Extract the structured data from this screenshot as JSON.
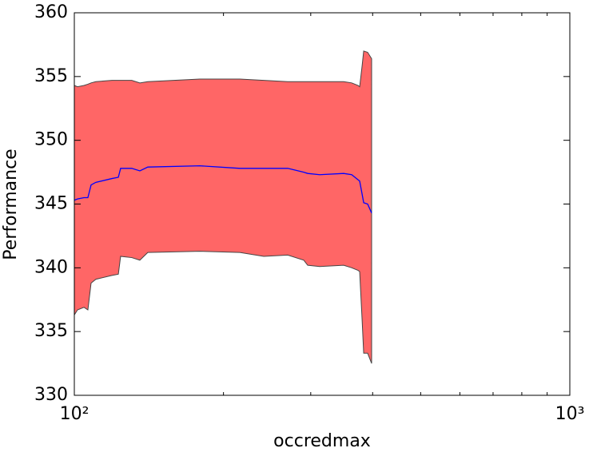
{
  "chart_data": {
    "type": "line",
    "xlabel": "occredmax",
    "ylabel": "Performance",
    "xscale": "log",
    "x": [
      100,
      101.5,
      104.6,
      106.5,
      108.1,
      110.5,
      119.1,
      122.7,
      124,
      130.6,
      135.6,
      140.7,
      179.1,
      215.8,
      241.2,
      269.6,
      290.4,
      295.8,
      312.7,
      349.6,
      362.9,
      373.8,
      376.6,
      380.8,
      383.7,
      390.8,
      398.1
    ],
    "series": [
      {
        "color": "#0000ff",
        "values": [
          345.3,
          345.4,
          345.5,
          345.5,
          346.5,
          346.7,
          347.0,
          347.1,
          347.8,
          347.8,
          347.6,
          347.9,
          348.0,
          347.8,
          347.8,
          347.8,
          347.5,
          347.4,
          347.3,
          347.4,
          347.3,
          346.9,
          346.8,
          345.8,
          345.1,
          345.0,
          344.3
        ]
      }
    ],
    "band": {
      "color": "#ff6666",
      "upper": [
        354.3,
        354.2,
        354.3,
        354.4,
        354.5,
        354.6,
        354.7,
        354.7,
        354.7,
        354.7,
        354.5,
        354.6,
        354.8,
        354.8,
        354.7,
        354.6,
        354.6,
        354.6,
        354.6,
        354.6,
        354.5,
        354.3,
        354.2,
        355.8,
        357.0,
        356.9,
        356.4
      ],
      "lower": [
        336.3,
        336.7,
        336.9,
        336.7,
        338.8,
        339.1,
        339.4,
        339.5,
        340.9,
        340.8,
        340.6,
        341.2,
        341.3,
        341.2,
        340.9,
        341.0,
        340.6,
        340.2,
        340.1,
        340.2,
        340.0,
        339.8,
        339.7,
        336.0,
        333.3,
        333.3,
        332.5
      ]
    },
    "xlim": [
      100,
      1000
    ],
    "ylim": [
      330,
      360
    ],
    "xticks": [
      {
        "value": 100,
        "label": "10²"
      },
      {
        "value": 1000,
        "label": "10³"
      }
    ],
    "xminorticks": [
      200,
      300,
      400,
      500,
      600,
      700,
      800,
      900
    ],
    "yticks": [
      330,
      335,
      340,
      345,
      350,
      355,
      360
    ]
  }
}
